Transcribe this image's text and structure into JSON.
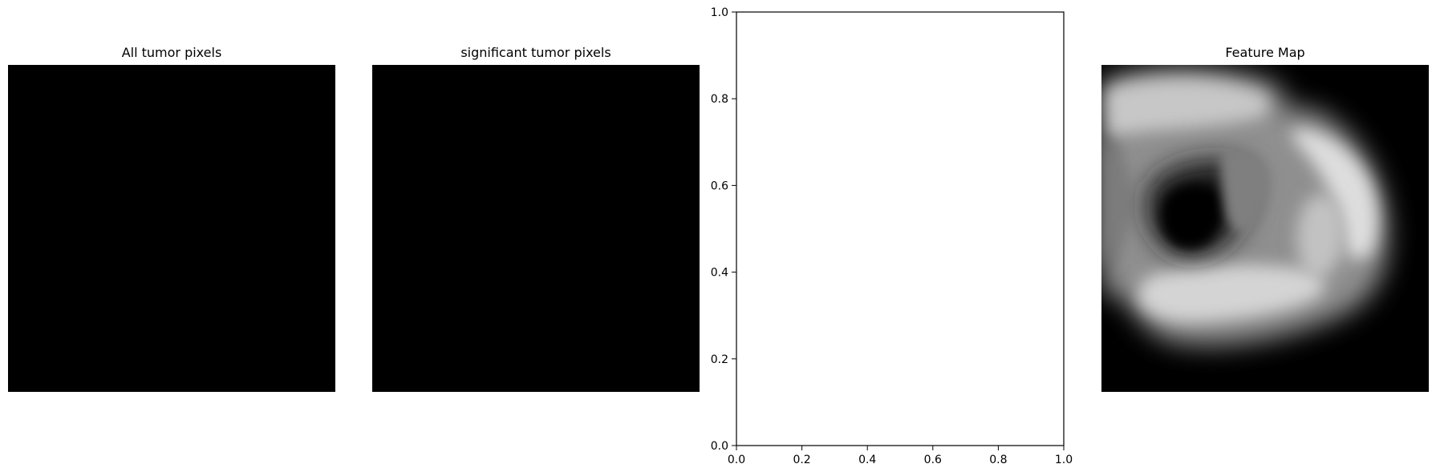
{
  "panels": [
    {
      "title": "All tumor pixels",
      "content": "black image"
    },
    {
      "title": "significant tumor pixels",
      "content": "black image"
    },
    {
      "title": "",
      "content": "empty axes"
    },
    {
      "title": "Feature Map",
      "content": "grayscale blurred feature map"
    }
  ],
  "chart_data": [
    {
      "type": "image",
      "title": "All tumor pixels",
      "colormap": "gray",
      "axes": "off",
      "values_description": "all black"
    },
    {
      "type": "image",
      "title": "significant tumor pixels",
      "colormap": "gray",
      "axes": "off",
      "values_description": "all black"
    },
    {
      "type": "scatter",
      "title": "",
      "xlabel": "",
      "ylabel": "",
      "xlim": [
        0.0,
        1.0
      ],
      "ylim": [
        0.0,
        1.0
      ],
      "x_ticks": [
        "0.0",
        "0.2",
        "0.4",
        "0.6",
        "0.8",
        "1.0"
      ],
      "y_ticks": [
        "0.0",
        "0.2",
        "0.4",
        "0.6",
        "0.8",
        "1.0"
      ],
      "series": [],
      "grid": false,
      "legend": "none"
    },
    {
      "type": "image",
      "title": "Feature Map",
      "colormap": "gray",
      "axes": "off"
    }
  ]
}
